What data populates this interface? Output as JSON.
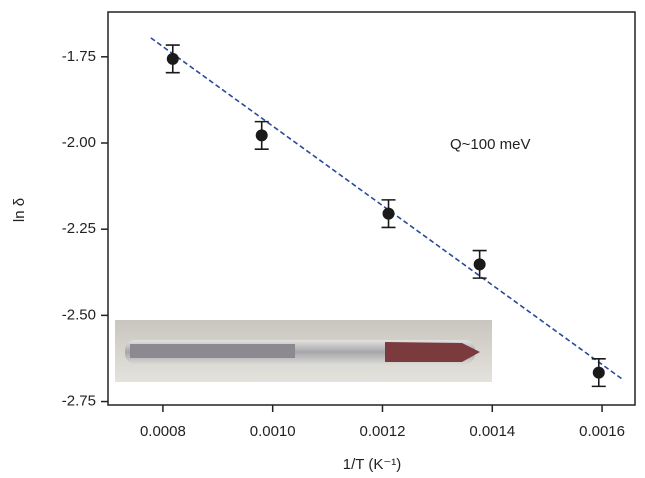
{
  "chart_data": {
    "type": "scatter",
    "x_label": "1/T (K⁻¹)",
    "y_label": "ln δ",
    "annotation": "Q~100 meV",
    "xlim": [
      0.0007,
      0.00166
    ],
    "ylim": [
      -2.76,
      -1.62
    ],
    "xticks": [
      0.0008,
      {
        "value": 0.001,
        "label": "0.0010"
      },
      0.0012,
      0.0014,
      0.0016
    ],
    "yticks": [
      -1.75,
      {
        "value": -2,
        "label": "-2.00"
      },
      -2.25,
      {
        "value": -2.5,
        "label": "-2.50"
      },
      -2.75
    ],
    "series": [
      {
        "color": "#1a1a1a",
        "x": [
          0.000818,
          0.00098,
          0.001211,
          0.001377,
          0.001594
        ],
        "values": [
          -1.756,
          -1.978,
          -2.205,
          -2.352,
          -2.666
        ],
        "errors": [
          0.04,
          0.04,
          0.04,
          0.04,
          0.04
        ]
      }
    ],
    "fit": {
      "color": "#2a4a9a",
      "x": [
        0.000778,
        0.001636
      ],
      "values": [
        -1.695,
        -2.684
      ]
    }
  }
}
